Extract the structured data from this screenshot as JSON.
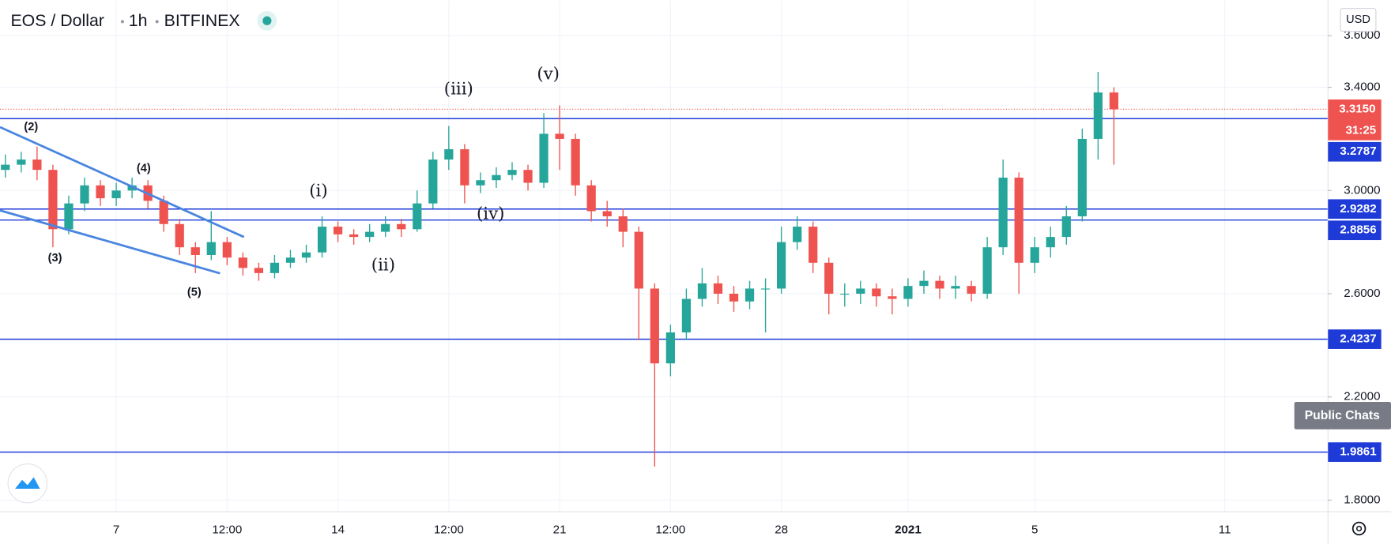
{
  "header": {
    "symbol": "EOS / Dollar",
    "interval": "1h",
    "exchange": "BITFINEX",
    "currency": "USD"
  },
  "chart_data": {
    "type": "candlestick",
    "x": [
      3.5,
      4,
      4.5,
      5,
      5.5,
      6,
      6.5,
      7,
      7.5,
      8,
      8.5,
      9,
      9.5,
      10,
      10.5,
      11,
      11.5,
      12,
      12.5,
      13,
      13.5,
      14,
      14.5,
      15,
      15.5,
      16,
      16.5,
      17,
      17.5,
      18,
      18.5,
      19,
      19.5,
      20,
      20.5,
      21,
      21.5,
      22,
      22.5,
      23,
      23.5,
      24,
      24.5,
      25,
      25.5,
      26,
      26.5,
      27,
      27.5,
      28,
      28.5,
      29,
      29.5,
      30,
      30.5,
      31,
      31.5,
      32,
      32.5,
      33,
      33.5,
      34,
      34.5,
      35,
      35.5,
      36,
      36.5,
      37,
      37.5,
      38,
      38.5
    ],
    "open": [
      3.08,
      3.1,
      3.12,
      3.08,
      2.85,
      2.95,
      3.02,
      2.97,
      3.0,
      3.02,
      2.96,
      2.87,
      2.78,
      2.75,
      2.8,
      2.74,
      2.7,
      2.68,
      2.72,
      2.74,
      2.76,
      2.86,
      2.83,
      2.82,
      2.84,
      2.87,
      2.85,
      2.95,
      3.12,
      3.16,
      3.02,
      3.04,
      3.06,
      3.08,
      3.03,
      3.22,
      3.2,
      3.02,
      2.92,
      2.9,
      2.84,
      2.62,
      2.33,
      2.45,
      2.58,
      2.64,
      2.6,
      2.57,
      2.62,
      2.62,
      2.8,
      2.86,
      2.72,
      2.6,
      2.6,
      2.62,
      2.59,
      2.58,
      2.63,
      2.65,
      2.62,
      2.63,
      2.6,
      2.78,
      3.05,
      2.72,
      2.78,
      2.82,
      2.9,
      3.2,
      3.38
    ],
    "high": [
      3.14,
      3.15,
      3.17,
      3.1,
      2.98,
      3.05,
      3.04,
      3.03,
      3.05,
      3.04,
      2.98,
      2.89,
      2.8,
      2.92,
      2.82,
      2.76,
      2.72,
      2.75,
      2.77,
      2.79,
      2.9,
      2.88,
      2.85,
      2.87,
      2.9,
      2.89,
      3.0,
      3.15,
      3.25,
      3.18,
      3.07,
      3.09,
      3.11,
      3.1,
      3.3,
      3.33,
      3.22,
      3.04,
      2.96,
      2.93,
      2.86,
      2.64,
      2.48,
      2.62,
      2.7,
      2.67,
      2.63,
      2.65,
      2.66,
      2.86,
      2.9,
      2.88,
      2.74,
      2.64,
      2.65,
      2.64,
      2.62,
      2.66,
      2.69,
      2.67,
      2.67,
      2.65,
      2.82,
      3.12,
      3.07,
      2.82,
      2.86,
      2.94,
      3.24,
      3.46,
      3.4
    ],
    "low": [
      3.05,
      3.07,
      3.04,
      2.78,
      2.83,
      2.92,
      2.94,
      2.94,
      2.97,
      2.93,
      2.84,
      2.75,
      2.68,
      2.73,
      2.71,
      2.67,
      2.65,
      2.66,
      2.7,
      2.72,
      2.74,
      2.8,
      2.79,
      2.8,
      2.82,
      2.82,
      2.84,
      2.93,
      3.08,
      2.95,
      2.99,
      3.01,
      3.04,
      3.0,
      3.01,
      3.08,
      2.98,
      2.88,
      2.86,
      2.78,
      2.42,
      1.93,
      2.28,
      2.42,
      2.55,
      2.56,
      2.53,
      2.54,
      2.45,
      2.6,
      2.77,
      2.68,
      2.52,
      2.55,
      2.56,
      2.55,
      2.52,
      2.55,
      2.6,
      2.58,
      2.58,
      2.57,
      2.58,
      2.75,
      2.6,
      2.68,
      2.74,
      2.79,
      2.88,
      3.12,
      3.1
    ],
    "close": [
      3.1,
      3.12,
      3.08,
      2.85,
      2.95,
      3.02,
      2.97,
      3.0,
      3.02,
      2.96,
      2.87,
      2.78,
      2.75,
      2.8,
      2.74,
      2.7,
      2.68,
      2.72,
      2.74,
      2.76,
      2.86,
      2.83,
      2.82,
      2.84,
      2.87,
      2.85,
      2.95,
      3.12,
      3.16,
      3.02,
      3.04,
      3.06,
      3.08,
      3.03,
      3.22,
      3.2,
      3.02,
      2.92,
      2.9,
      2.84,
      2.62,
      2.33,
      2.45,
      2.58,
      2.64,
      2.6,
      2.57,
      2.62,
      2.62,
      2.8,
      2.86,
      2.72,
      2.6,
      2.6,
      2.62,
      2.59,
      2.58,
      2.63,
      2.65,
      2.62,
      2.63,
      2.6,
      2.78,
      3.05,
      2.72,
      2.78,
      2.82,
      2.9,
      3.2,
      3.38,
      3.315
    ],
    "up_color": "#26a69a",
    "down_color": "#ef5350",
    "xlim": [
      3.33,
      45.26
    ],
    "ylim": [
      1.755,
      3.737
    ],
    "xticks": [
      7,
      {
        "value": 10.5,
        "label": "12:00"
      },
      14,
      {
        "value": 17.5,
        "label": "12:00"
      },
      21,
      {
        "value": 24.5,
        "label": "12:00"
      },
      28,
      {
        "value": 32,
        "label": "2021"
      },
      {
        "value": 36,
        "label": "5"
      },
      {
        "value": 42,
        "label": "11"
      }
    ],
    "yticks": [
      {
        "value": 3.6,
        "label": "3.6000"
      },
      {
        "value": 3.4,
        "label": "3.4000"
      },
      {
        "value": 3.0,
        "label": "3.0000"
      },
      {
        "value": 2.6,
        "label": "2.6000"
      },
      {
        "value": 2.2,
        "label": "2.2000"
      },
      {
        "value": 1.8,
        "label": "1.8000"
      }
    ],
    "grid": true,
    "level_color": "#1e3bd8",
    "levels": [
      {
        "value": 3.2787,
        "label": "3.2787"
      },
      {
        "value": 2.9282,
        "label": "2.9282"
      },
      {
        "value": 2.8856,
        "label": "2.8856"
      },
      {
        "value": 2.4237,
        "label": "2.4237"
      },
      {
        "value": 1.9861,
        "label": "1.9861"
      }
    ],
    "last_price": {
      "value": 3.315,
      "label": "3.3150",
      "countdown": "31:25",
      "color": "#ef5350"
    },
    "annotations": [
      "(2)",
      "(3)",
      "(4)",
      "(5)",
      "(i)",
      "(ii)",
      "(iii)",
      "(iv)",
      "(v)"
    ]
  },
  "ui": {
    "public_chats": "Public Chats"
  }
}
